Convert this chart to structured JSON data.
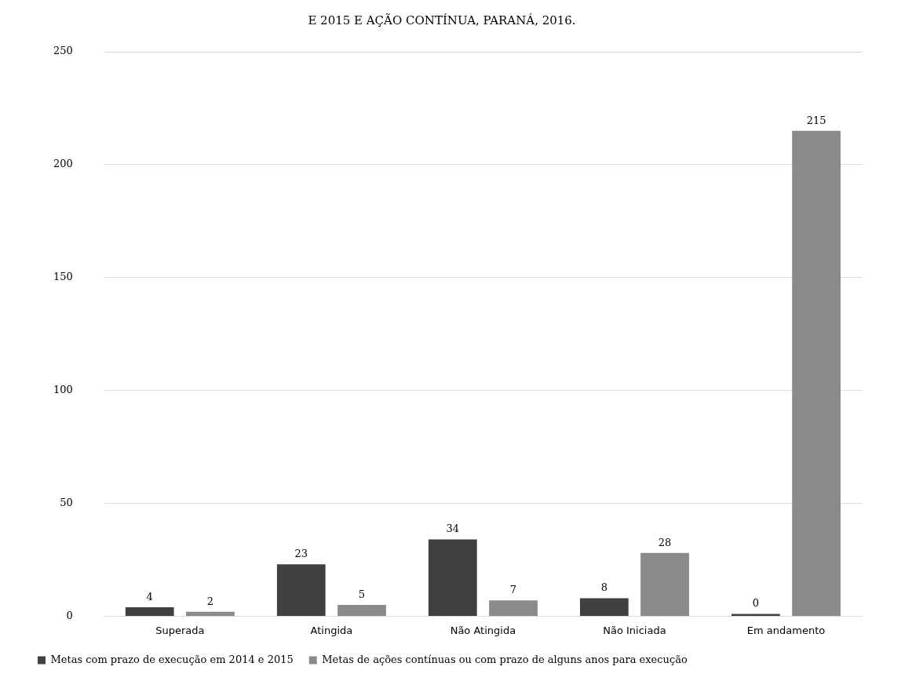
{
  "chart_data": {
    "type": "bar",
    "title": "E 2015 E AÇÃO CONTÍNUA, PARANÁ, 2016.",
    "categories": [
      "Superada",
      "Atingida",
      "Não Atingida",
      "Não Iniciada",
      "Em andamento"
    ],
    "series": [
      {
        "name": "Metas com prazo de execução em 2014 e 2015",
        "color": "#404040",
        "values": [
          4,
          23,
          34,
          8,
          0
        ]
      },
      {
        "name": "Metas de ações contínuas ou com prazo de alguns anos para execução",
        "color": "#8a8a8a",
        "values": [
          2,
          5,
          7,
          28,
          215
        ]
      }
    ],
    "ylim": [
      0,
      250
    ],
    "yticks": [
      0,
      50,
      100,
      150,
      200,
      250
    ],
    "grid": "y",
    "legend": "bottom",
    "data_labels": true
  }
}
